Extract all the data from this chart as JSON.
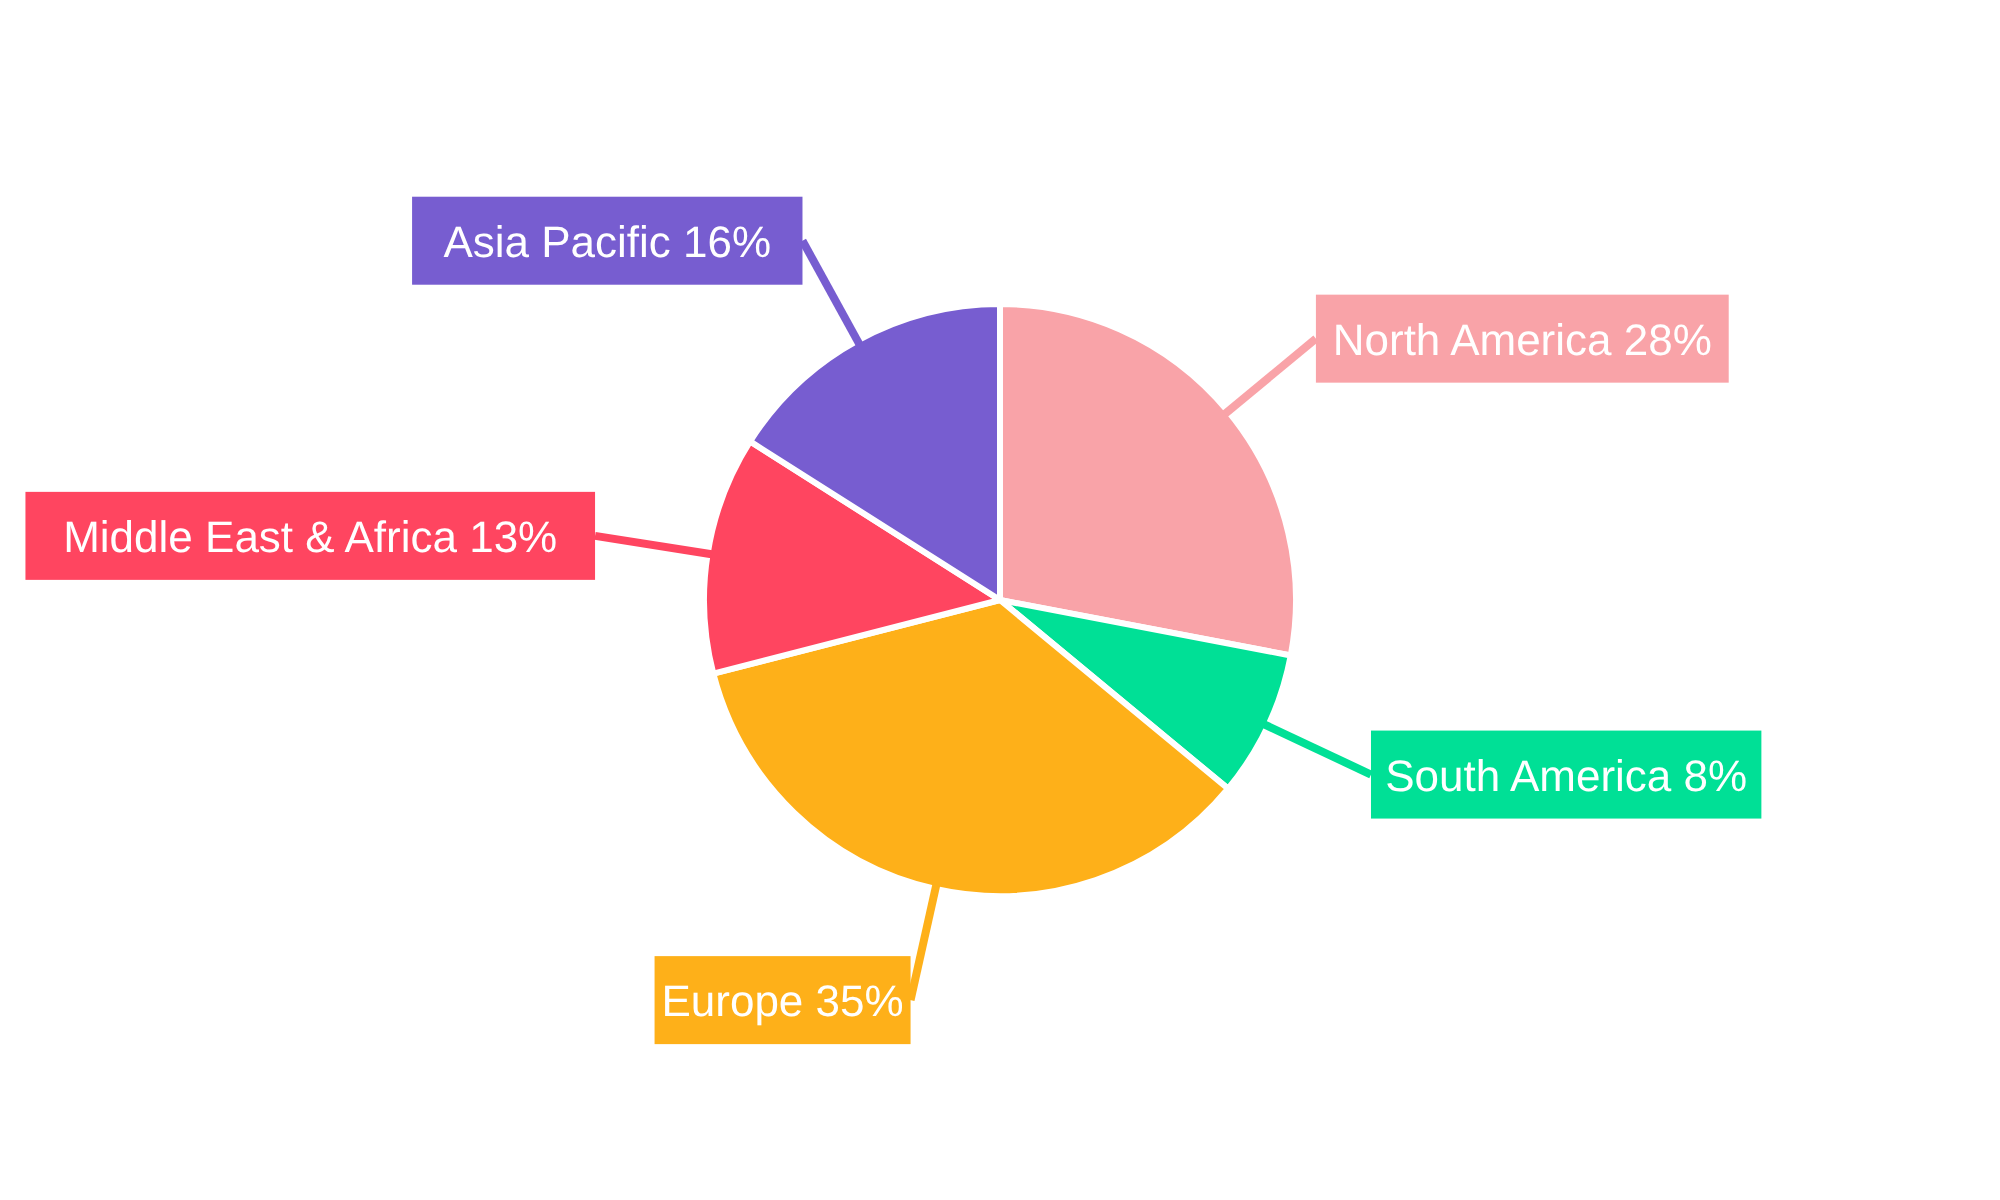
{
  "chart_data": {
    "type": "pie",
    "categories": [
      "North America",
      "South America",
      "Europe",
      "Middle East & Africa",
      "Asia Pacific"
    ],
    "values": [
      28,
      8,
      35,
      13,
      16
    ],
    "colors": [
      "#f9a3a8",
      "#00e096",
      "#feb019",
      "#ff4560",
      "#775dd0"
    ],
    "value_labels": [
      "28%",
      "8%",
      "35%",
      "13%",
      "16%"
    ]
  }
}
